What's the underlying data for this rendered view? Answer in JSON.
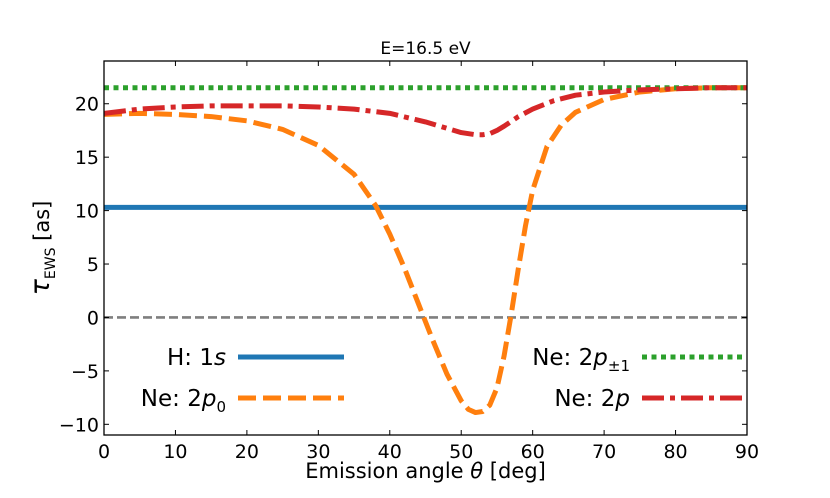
{
  "chart_data": {
    "type": "line",
    "title": "E=16.5 eV",
    "xlabel": {
      "main": "Emission angle ",
      "symbol": "θ",
      "unit": " [deg]"
    },
    "ylabel": {
      "symbol": "τ",
      "sub": "EWS",
      "unit": " [as]"
    },
    "xlim": [
      0,
      90
    ],
    "ylim": [
      -11,
      24
    ],
    "xticks": [
      0,
      10,
      20,
      30,
      40,
      50,
      60,
      70,
      80,
      90
    ],
    "yticks": [
      -10,
      -5,
      0,
      5,
      10,
      15,
      20
    ],
    "ytick_labels": [
      "−10",
      "−5",
      "0",
      "5",
      "10",
      "15",
      "20"
    ],
    "zero_line": {
      "y": 0,
      "color": "#7f7f7f",
      "style": "dashed"
    },
    "series": [
      {
        "name": "H: 1s",
        "legend": {
          "prefix": "H: 1",
          "italic": "s",
          "sub": ""
        },
        "color": "#1f77b4",
        "style": "solid",
        "x": [
          0,
          90
        ],
        "y": [
          10.3,
          10.3
        ]
      },
      {
        "name": "Ne: 2p0",
        "legend": {
          "prefix": "Ne: 2",
          "italic": "p",
          "sub": "0"
        },
        "color": "#ff7f0e",
        "style": "dashed",
        "x": [
          0,
          5,
          10,
          15,
          20,
          25,
          30,
          35,
          38,
          40,
          42,
          44,
          46,
          48,
          50,
          51,
          52,
          53,
          54,
          55,
          56,
          57,
          58,
          59,
          60,
          62,
          64,
          66,
          70,
          75,
          80,
          85,
          90
        ],
        "y": [
          19.0,
          19.1,
          19.0,
          18.8,
          18.4,
          17.6,
          16.1,
          13.4,
          10.5,
          7.8,
          4.7,
          1.3,
          -2.1,
          -5.3,
          -7.8,
          -8.6,
          -8.9,
          -8.8,
          -8.2,
          -6.6,
          -3.6,
          0.3,
          4.6,
          8.6,
          11.9,
          16.0,
          18.0,
          19.2,
          20.4,
          21.1,
          21.4,
          21.5,
          21.5
        ]
      },
      {
        "name": "Ne: 2p±1",
        "legend": {
          "prefix": "Ne: 2",
          "italic": "p",
          "sub": "±1"
        },
        "color": "#2ca02c",
        "style": "dotted",
        "x": [
          0,
          90
        ],
        "y": [
          21.5,
          21.5
        ]
      },
      {
        "name": "Ne: 2p",
        "legend": {
          "prefix": "Ne: 2",
          "italic": "p",
          "sub": ""
        },
        "color": "#d62728",
        "style": "dashdot",
        "x": [
          0,
          5,
          10,
          15,
          20,
          25,
          30,
          35,
          40,
          45,
          48,
          50,
          52,
          53,
          54,
          55,
          56,
          58,
          60,
          63,
          66,
          70,
          75,
          80,
          85,
          90
        ],
        "y": [
          19.1,
          19.5,
          19.7,
          19.8,
          19.8,
          19.8,
          19.7,
          19.5,
          19.1,
          18.3,
          17.7,
          17.3,
          17.1,
          17.1,
          17.2,
          17.5,
          17.9,
          18.8,
          19.5,
          20.3,
          20.8,
          21.1,
          21.3,
          21.4,
          21.5,
          21.5
        ]
      }
    ],
    "legend_left": [
      "H: 1s",
      "Ne: 2p0"
    ],
    "legend_right": [
      "Ne: 2p±1",
      "Ne: 2p"
    ]
  }
}
